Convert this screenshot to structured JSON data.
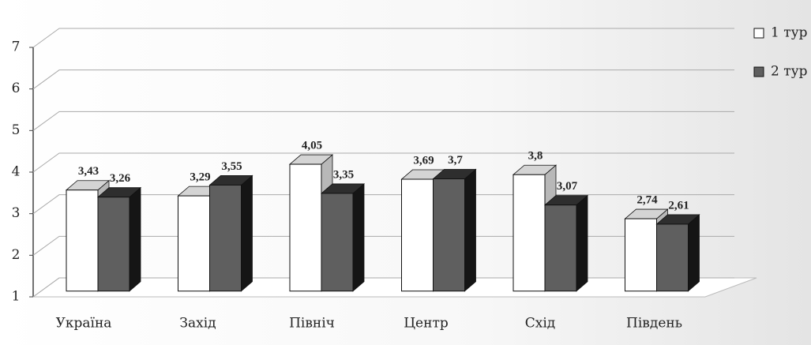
{
  "chart_data": {
    "type": "bar3d",
    "categories": [
      "Україна",
      "Захід",
      "Північ",
      "Центр",
      "Схід",
      "Південь"
    ],
    "series": [
      {
        "name": "1 тур",
        "color": "#ffffff",
        "values": [
          3.43,
          3.29,
          4.05,
          3.69,
          3.8,
          2.74
        ],
        "value_labels": [
          "3,43",
          "3,29",
          "4,05",
          "3,69",
          "3,8",
          "2,74"
        ]
      },
      {
        "name": "2 тур",
        "color": "#5f5f5f",
        "values": [
          3.26,
          3.55,
          3.35,
          3.7,
          3.07,
          2.61
        ],
        "value_labels": [
          "3,26",
          "3,55",
          "3,35",
          "3,7",
          "3,07",
          "2,61"
        ]
      }
    ],
    "ylim": [
      1,
      7
    ],
    "yticks": [
      1,
      2,
      3,
      4,
      5,
      6,
      7
    ],
    "grid": true,
    "legend": "right"
  }
}
